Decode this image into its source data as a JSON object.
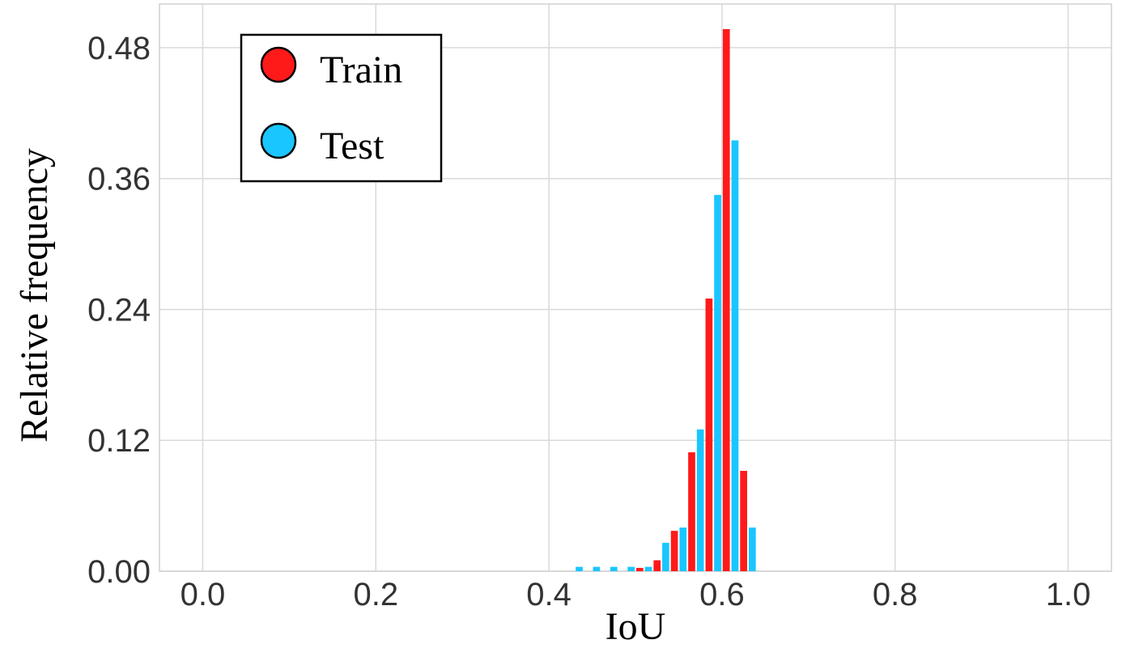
{
  "chart_data": {
    "type": "histogram",
    "x_label": "IoU",
    "y_label": "Relative frequency",
    "bins": [
      0.42,
      0.44,
      0.46,
      0.48,
      0.5,
      0.52,
      0.54,
      0.56,
      0.58,
      0.6,
      0.62,
      0.64
    ],
    "series": [
      {
        "name": "Train",
        "color": "#ff1a1a",
        "values": [
          0,
          0,
          0,
          0,
          0.003,
          0.01,
          0.037,
          0.109,
          0.25,
          0.497,
          0.092
        ]
      },
      {
        "name": "Test",
        "color": "#1ac6ff",
        "values": [
          0.004,
          0.004,
          0.004,
          0.004,
          0.004,
          0.026,
          0.04,
          0.13,
          0.345,
          0.395,
          0.04
        ]
      }
    ],
    "xlim": [
      -0.05,
      1.05
    ],
    "ylim": [
      0,
      0.52
    ],
    "xticks": [
      {
        "value": 0,
        "label": "0.0"
      },
      0.2,
      0.4,
      0.6,
      0.8,
      {
        "value": 1,
        "label": "1.0"
      }
    ],
    "yticks": [
      {
        "value": 0,
        "label": "0.00"
      },
      0.12,
      0.24,
      0.36,
      0.48
    ],
    "grid": true,
    "legend": "upper left"
  }
}
